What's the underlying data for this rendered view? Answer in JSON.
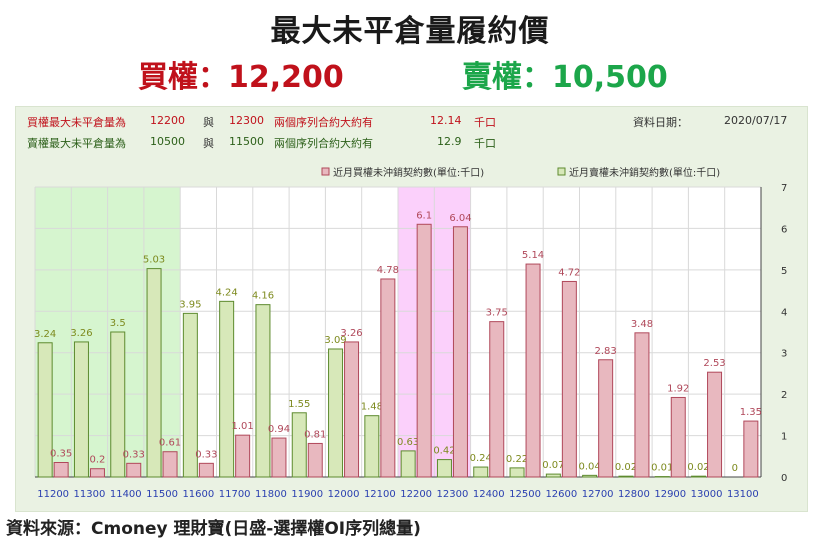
{
  "title": "最大未平倉量履約價",
  "call_summary": "買權：12,200",
  "put_summary": "賣權：10,500",
  "info": {
    "call_row": {
      "label": "買權最大未平倉量為",
      "strike_a": "12200",
      "conj": "與",
      "strike_b": "12300",
      "text": "兩個序列合約大約有",
      "value": "12.14",
      "unit": "千口"
    },
    "put_row": {
      "label": "賣權最大未平倉量為",
      "strike_a": "10500",
      "conj": "與",
      "strike_b": "11500",
      "text": "兩個序列合約大約有",
      "value": "12.9",
      "unit": "千口"
    },
    "date_label": "資料日期：",
    "date_value": "2020/07/17"
  },
  "footer": "資料來源：Cmoney 理財寶(日盛-選擇權OI序列總量)",
  "colors": {
    "call_bar": "#e8b8bf",
    "call_bar_stroke": "#b0485a",
    "put_bar": "#d7e8b9",
    "put_bar_stroke": "#5d8a2e",
    "call_label": "#b0485a",
    "put_label": "#7d8a1e",
    "put_highlight": "#d6f5cf",
    "call_highlight": "#fbd0fb",
    "axis_label": "#2a3fb0"
  },
  "chart_data": {
    "type": "bar",
    "categories": [
      "11200",
      "11300",
      "11400",
      "11500",
      "11600",
      "11700",
      "11800",
      "11900",
      "12000",
      "12100",
      "12200",
      "12300",
      "12400",
      "12500",
      "12600",
      "12700",
      "12800",
      "12900",
      "13000",
      "13100"
    ],
    "series": [
      {
        "name": "近月買權未沖銷契約數(單位:千口)",
        "values": [
          0.35,
          0.2,
          0.33,
          0.61,
          0.33,
          1.01,
          0.94,
          0.81,
          3.26,
          4.78,
          6.1,
          6.04,
          3.75,
          5.14,
          4.72,
          2.83,
          3.48,
          1.92,
          2.53,
          1.35
        ]
      },
      {
        "name": "近月賣權未沖銷契約數(單位:千口)",
        "values": [
          3.24,
          3.26,
          3.5,
          5.03,
          3.95,
          4.24,
          4.16,
          1.55,
          3.09,
          1.48,
          0.63,
          0.42,
          0.24,
          0.22,
          0.07,
          0.04,
          0.02,
          0.01,
          0.02,
          0
        ]
      }
    ],
    "call_labels": [
      "0.35",
      "0.2",
      "0.33",
      "0.61",
      "0.33",
      "1.01",
      "0.94",
      "0.81",
      "3.26",
      "4.78",
      "6.1",
      "6.04",
      "3.75",
      "5.14",
      "4.72",
      "2.83",
      "3.48",
      "1.92",
      "2.53",
      "1.35"
    ],
    "put_labels": [
      "3.24",
      "3.26",
      "3.5",
      "5.03",
      "3.95",
      "4.24",
      "4.16",
      "1.55",
      "3.09",
      "1.48",
      "0.63",
      "0.42",
      "0.24",
      "0.22",
      "0.07",
      "0.04",
      "0.02",
      "0.01",
      "0.02",
      "0"
    ],
    "y_ticks": [
      "0",
      "1",
      "2",
      "3",
      "4",
      "5",
      "6",
      "7"
    ],
    "ylim": [
      0,
      7
    ],
    "grid": true,
    "legend_position": "top-center",
    "highlight_put_range": [
      "11200",
      "11500"
    ],
    "highlight_call_range": [
      "12200",
      "12300"
    ]
  }
}
